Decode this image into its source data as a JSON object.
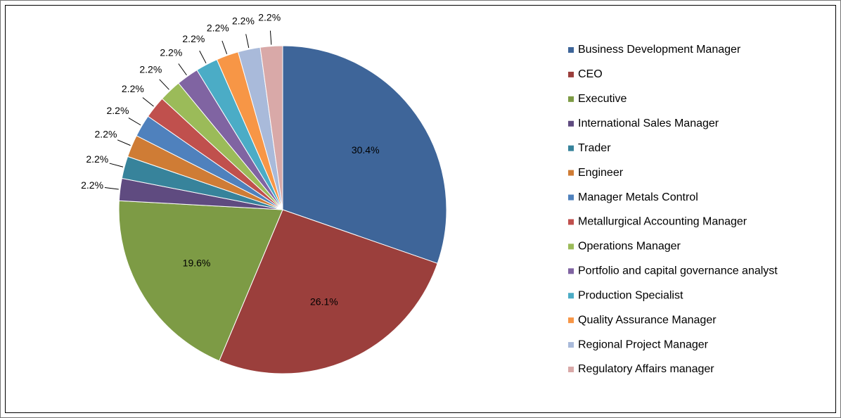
{
  "chart_data": {
    "type": "pie",
    "categories": [
      "Business Development Manager",
      "CEO",
      "Executive",
      "International Sales Manager",
      "Trader",
      "Engineer",
      "Manager Metals Control",
      "Metallurgical Accounting Manager",
      "Operations Manager",
      "Portfolio and capital governance analyst",
      "Production Specialist",
      "Quality Assurance Manager",
      "Regional Project Manager",
      "Regulatory Affairs manager"
    ],
    "values": [
      30.4,
      26.1,
      19.6,
      2.2,
      2.2,
      2.2,
      2.2,
      2.2,
      2.2,
      2.2,
      2.2,
      2.2,
      2.2,
      2.2
    ],
    "value_labels": [
      "30.4%",
      "26.1%",
      "19.6%",
      "2.2%",
      "2.2%",
      "2.2%",
      "2.2%",
      "2.2%",
      "2.2%",
      "2.2%",
      "2.2%",
      "2.2%",
      "2.2%",
      "2.2%"
    ],
    "colors": [
      "#3E6599",
      "#9B3F3C",
      "#7D9B45",
      "#5F4B80",
      "#37839B",
      "#CF7C35",
      "#4F81BD",
      "#C0504D",
      "#9BBB59",
      "#8064A2",
      "#4BACC6",
      "#F79646",
      "#A9BADA",
      "#D9A9A8"
    ],
    "legend": "right"
  }
}
